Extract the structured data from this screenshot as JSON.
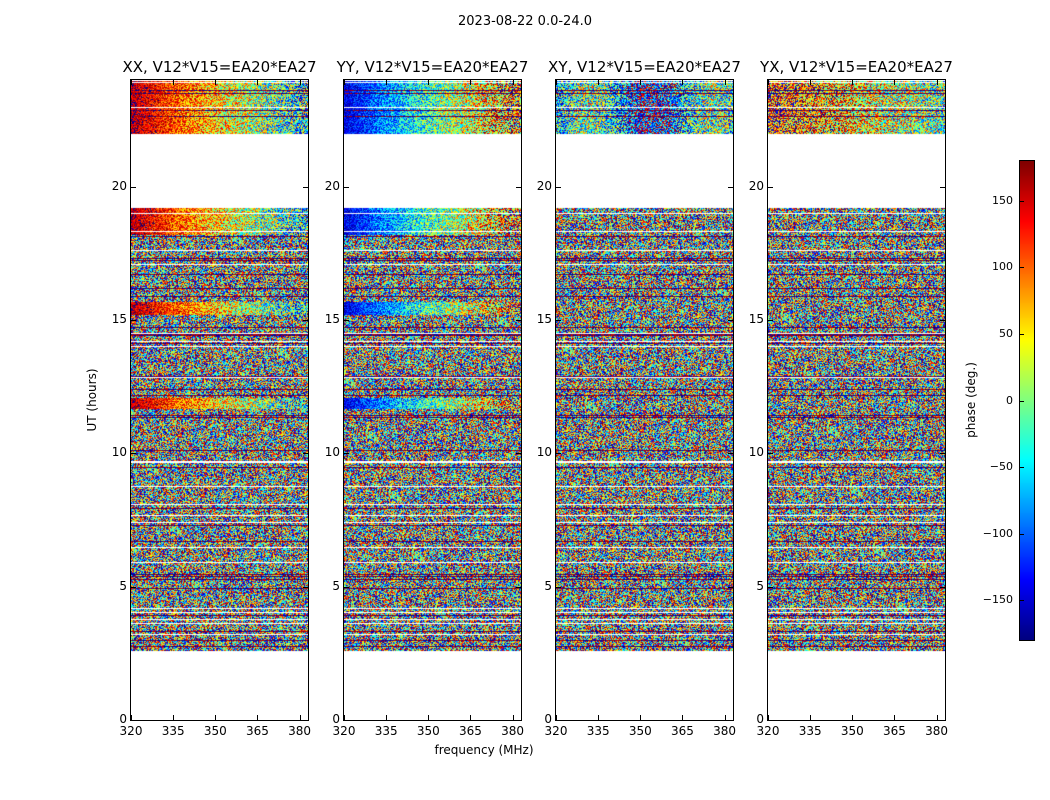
{
  "chart_data": {
    "type": "heatmap",
    "suptitle": "2023-08-22 0.0-24.0",
    "xlabel": "frequency (MHz)",
    "ylabel": "UT (hours)",
    "xlim": [
      320,
      383
    ],
    "ylim": [
      0,
      24
    ],
    "xticks": [
      "320",
      "335",
      "350",
      "365",
      "380"
    ],
    "yticks": [
      "0",
      "5",
      "10",
      "15",
      "20"
    ],
    "data_time_ranges_hours": [
      [
        2.6,
        19.2
      ],
      [
        22.0,
        24.0
      ]
    ],
    "coherent_segments_hours": [
      [
        22.0,
        24.0
      ],
      [
        15.2,
        15.7
      ],
      [
        11.7,
        12.1
      ],
      [
        18.2,
        19.2
      ]
    ],
    "panels": [
      {
        "title": "XX, V12*V15=EA20*EA27",
        "pol": "XX"
      },
      {
        "title": "YY, V12*V15=EA20*EA27",
        "pol": "YY"
      },
      {
        "title": "XY, V12*V15=EA20*EA27",
        "pol": "XY"
      },
      {
        "title": "YX, V12*V15=EA20*EA27",
        "pol": "YX"
      }
    ],
    "colorbar": {
      "label": "phase (deg.)",
      "range": [
        -180,
        180
      ],
      "ticks": [
        "−150",
        "−100",
        "−50",
        "0",
        "50",
        "100",
        "150"
      ],
      "colormap": "jet"
    }
  }
}
